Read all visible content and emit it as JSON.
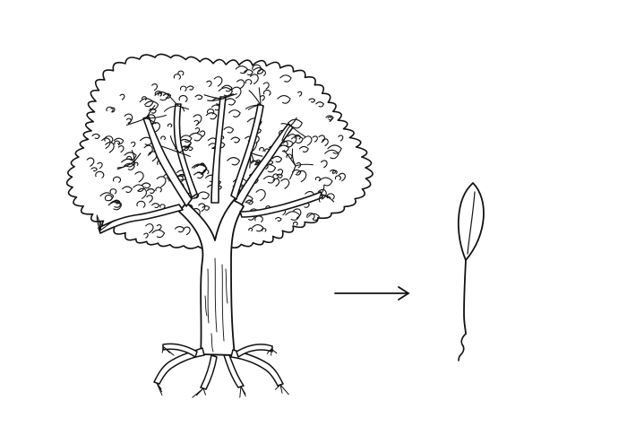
{
  "illustration": {
    "style": "black ink line drawing",
    "left_subject": "tree-icon",
    "connector": "arrow-right-icon",
    "right_subject": "seedling-icon"
  },
  "colors": {
    "background": "#ffffff",
    "ink": "#111111"
  }
}
